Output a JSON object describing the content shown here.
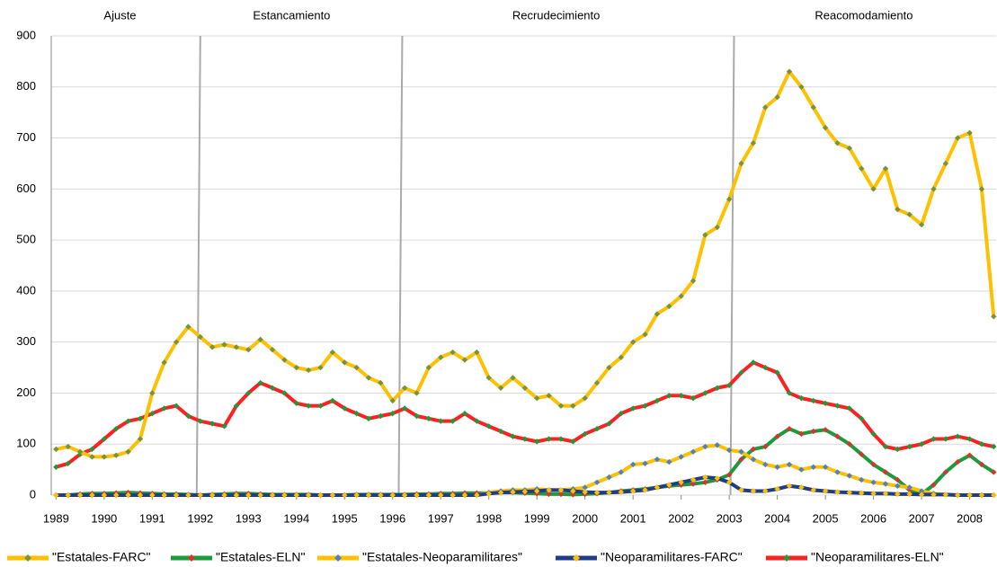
{
  "chart_data": {
    "type": "line",
    "x": [
      1989,
      1989.25,
      1989.5,
      1989.75,
      1990,
      1990.25,
      1990.5,
      1990.75,
      1991,
      1991.25,
      1991.5,
      1991.75,
      1992,
      1992.25,
      1992.5,
      1992.75,
      1993,
      1993.25,
      1993.5,
      1993.75,
      1994,
      1994.25,
      1994.5,
      1994.75,
      1995,
      1995.25,
      1995.5,
      1995.75,
      1996,
      1996.25,
      1996.5,
      1996.75,
      1997,
      1997.25,
      1997.5,
      1997.75,
      1998,
      1998.25,
      1998.5,
      1998.75,
      1999,
      1999.25,
      1999.5,
      1999.75,
      2000,
      2000.25,
      2000.5,
      2000.75,
      2001,
      2001.25,
      2001.5,
      2001.75,
      2002,
      2002.25,
      2002.5,
      2002.75,
      2003,
      2003.25,
      2003.5,
      2003.75,
      2004,
      2004.25,
      2004.5,
      2004.75,
      2005,
      2005.25,
      2005.5,
      2005.75,
      2006,
      2006.25,
      2006.5,
      2006.75,
      2007,
      2007.25,
      2007.5,
      2007.75,
      2008,
      2008.25,
      2008.5
    ],
    "series": [
      {
        "name": "\"Estatales-FARC\"",
        "color": "#ffc000",
        "marker_color": "#77933c",
        "values": [
          90,
          95,
          85,
          75,
          75,
          78,
          85,
          110,
          200,
          260,
          300,
          330,
          310,
          290,
          295,
          290,
          285,
          305,
          285,
          265,
          250,
          245,
          250,
          280,
          260,
          250,
          230,
          220,
          185,
          210,
          200,
          250,
          270,
          280,
          265,
          280,
          230,
          210,
          230,
          210,
          190,
          195,
          175,
          175,
          190,
          220,
          250,
          270,
          300,
          315,
          355,
          370,
          390,
          420,
          510,
          525,
          580,
          650,
          690,
          760,
          780,
          830,
          800,
          760,
          720,
          690,
          680,
          640,
          600,
          640,
          560,
          550,
          530,
          600,
          650,
          700,
          710,
          600,
          350
        ]
      },
      {
        "name": "\"Estatales-ELN\"",
        "color": "#1e9a3c",
        "marker_color": "#d9342b",
        "values": [
          0,
          0,
          2,
          3,
          3,
          4,
          5,
          4,
          3,
          2,
          2,
          1,
          0,
          1,
          2,
          3,
          3,
          2,
          1,
          1,
          1,
          1,
          0,
          0,
          0,
          1,
          1,
          1,
          1,
          1,
          2,
          2,
          3,
          3,
          4,
          4,
          4,
          5,
          5,
          4,
          3,
          2,
          2,
          1,
          2,
          3,
          5,
          8,
          10,
          12,
          15,
          18,
          20,
          22,
          25,
          30,
          40,
          70,
          90,
          95,
          115,
          130,
          120,
          125,
          128,
          115,
          100,
          80,
          60,
          45,
          30,
          10,
          2,
          20,
          45,
          65,
          78,
          60,
          45
        ]
      },
      {
        "name": "\"Estatales-Neoparamilitares\"",
        "color": "#ffc000",
        "marker_color": "#4f81bd",
        "values": [
          0,
          0,
          0,
          0,
          0,
          0,
          0,
          0,
          0,
          0,
          0,
          0,
          0,
          0,
          0,
          0,
          0,
          0,
          0,
          0,
          0,
          0,
          0,
          0,
          0,
          0,
          0,
          0,
          0,
          0,
          0,
          0,
          0,
          0,
          0,
          0,
          5,
          8,
          10,
          10,
          12,
          10,
          10,
          12,
          15,
          25,
          35,
          45,
          60,
          62,
          70,
          65,
          75,
          85,
          95,
          98,
          88,
          85,
          70,
          60,
          55,
          60,
          50,
          55,
          55,
          45,
          38,
          30,
          25,
          22,
          18,
          15,
          8,
          3,
          1,
          0,
          0,
          0,
          0
        ]
      },
      {
        "name": "\"Neoparamilitares-FARC\"",
        "color": "#1f3c88",
        "marker_color": "#ffc000",
        "values": [
          0,
          0,
          0,
          0,
          0,
          0,
          0,
          0,
          0,
          0,
          0,
          0,
          0,
          0,
          0,
          0,
          0,
          0,
          0,
          0,
          0,
          0,
          0,
          0,
          0,
          0,
          0,
          0,
          0,
          0,
          0,
          0,
          0,
          0,
          0,
          0,
          3,
          5,
          6,
          7,
          8,
          10,
          10,
          8,
          6,
          5,
          5,
          6,
          8,
          10,
          15,
          20,
          25,
          30,
          35,
          33,
          25,
          10,
          8,
          8,
          12,
          18,
          15,
          10,
          8,
          6,
          5,
          4,
          3,
          3,
          2,
          2,
          1,
          1,
          1,
          0,
          0,
          0,
          0
        ]
      },
      {
        "name": "\"Neoparamilitares-ELN\"",
        "color": "#ff2020",
        "marker_color": "#1e9a3c",
        "values": [
          55,
          62,
          80,
          90,
          110,
          130,
          145,
          150,
          160,
          170,
          175,
          155,
          145,
          140,
          135,
          175,
          200,
          220,
          210,
          200,
          180,
          175,
          175,
          185,
          170,
          160,
          150,
          155,
          160,
          170,
          155,
          150,
          145,
          145,
          160,
          145,
          135,
          125,
          115,
          110,
          105,
          110,
          110,
          105,
          120,
          130,
          140,
          160,
          170,
          175,
          185,
          195,
          195,
          190,
          200,
          210,
          215,
          240,
          260,
          250,
          240,
          200,
          190,
          185,
          180,
          175,
          170,
          150,
          120,
          95,
          90,
          95,
          100,
          110,
          110,
          115,
          110,
          100,
          95
        ]
      }
    ],
    "xlim": [
      1988.9,
      2008.55
    ],
    "xticks": [
      1989,
      1990,
      1991,
      1992,
      1993,
      1994,
      1995,
      1996,
      1997,
      1998,
      1999,
      2000,
      2001,
      2002,
      2003,
      2004,
      2005,
      2006,
      2007,
      2008
    ],
    "ylim": [
      0,
      900
    ],
    "yticks": [
      0,
      100,
      200,
      300,
      400,
      500,
      600,
      700,
      800,
      900
    ],
    "grid": true,
    "period_lines": [
      1992,
      1996.2,
      2003.1
    ],
    "period_labels": [
      {
        "text": "Ajuste",
        "x": 1990.33
      },
      {
        "text": "Estancamiento",
        "x": 1993.9
      },
      {
        "text": "Recrudecimiento",
        "x": 1999.4
      },
      {
        "text": "Reacomodamiento",
        "x": 2005.8
      }
    ],
    "legend": "bottom"
  }
}
